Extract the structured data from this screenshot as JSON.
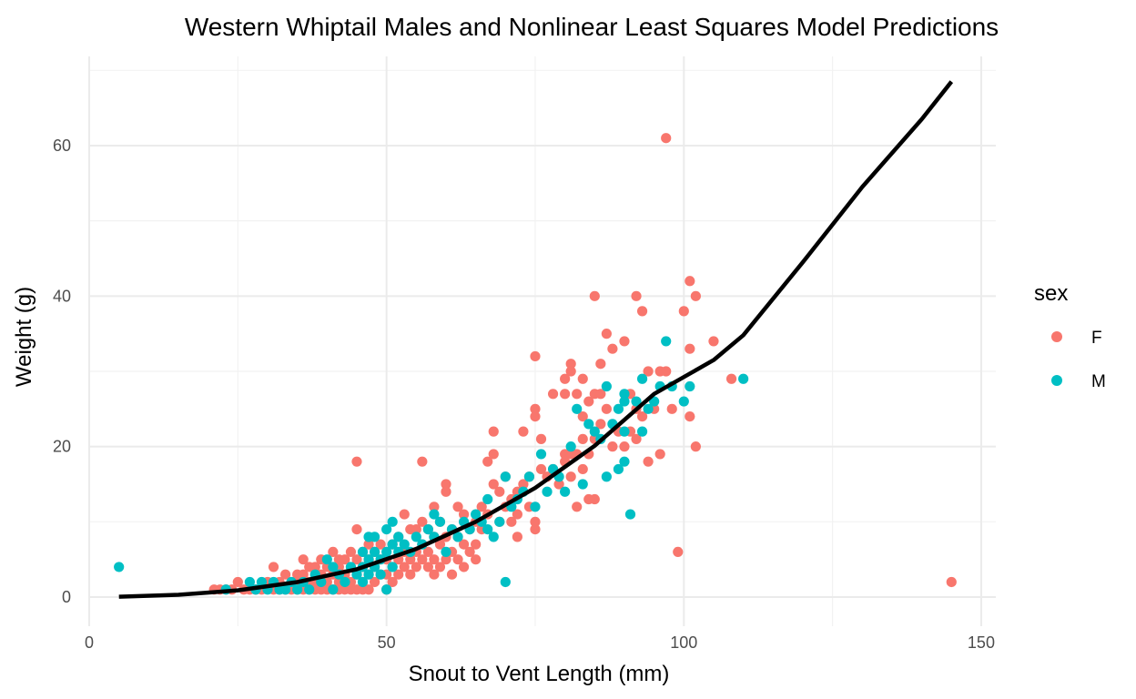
{
  "chart_data": {
    "type": "scatter",
    "title": "Western Whiptail Males and Nonlinear Least Squares Model Predictions",
    "xlabel": "Snout to Vent Length (mm)",
    "ylabel": "Weight (g)",
    "xlim": [
      0,
      150
    ],
    "ylim": [
      0,
      70
    ],
    "x_ticks": [
      0,
      50,
      100,
      150
    ],
    "x_tick_labels": [
      "0",
      "50",
      "100",
      "150"
    ],
    "y_ticks": [
      0,
      20,
      40,
      60
    ],
    "y_tick_labels": [
      "0",
      "20",
      "40",
      "60"
    ],
    "grid": true,
    "legend": {
      "title": "sex",
      "position": "right",
      "entries": [
        {
          "label": "F",
          "color": "#F8766D"
        },
        {
          "label": "M",
          "color": "#00BFC4"
        }
      ]
    },
    "series": [
      {
        "name": "F",
        "color": "#F8766D",
        "points": [
          [
            21,
            1
          ],
          [
            22,
            1
          ],
          [
            23,
            1
          ],
          [
            24,
            1
          ],
          [
            25,
            2
          ],
          [
            26,
            1
          ],
          [
            27,
            1
          ],
          [
            28,
            1
          ],
          [
            29,
            1
          ],
          [
            30,
            2
          ],
          [
            31,
            4
          ],
          [
            31,
            1
          ],
          [
            32,
            2
          ],
          [
            32,
            1
          ],
          [
            33,
            3
          ],
          [
            33,
            1
          ],
          [
            34,
            2
          ],
          [
            34,
            1
          ],
          [
            35,
            3
          ],
          [
            35,
            2
          ],
          [
            35,
            1
          ],
          [
            36,
            5
          ],
          [
            36,
            3
          ],
          [
            36,
            1
          ],
          [
            37,
            4
          ],
          [
            37,
            2
          ],
          [
            37,
            1
          ],
          [
            38,
            4
          ],
          [
            38,
            3
          ],
          [
            38,
            2
          ],
          [
            38,
            1
          ],
          [
            39,
            5
          ],
          [
            39,
            3
          ],
          [
            39,
            1
          ],
          [
            40,
            4
          ],
          [
            40,
            2
          ],
          [
            40,
            1
          ],
          [
            41,
            6
          ],
          [
            41,
            3
          ],
          [
            41,
            1
          ],
          [
            42,
            5
          ],
          [
            42,
            4
          ],
          [
            42,
            2
          ],
          [
            42,
            1
          ],
          [
            43,
            5
          ],
          [
            43,
            3
          ],
          [
            43,
            1
          ],
          [
            44,
            6
          ],
          [
            44,
            4
          ],
          [
            44,
            2
          ],
          [
            44,
            1
          ],
          [
            45,
            18
          ],
          [
            45,
            9
          ],
          [
            45,
            5
          ],
          [
            45,
            3
          ],
          [
            45,
            1
          ],
          [
            46,
            6
          ],
          [
            46,
            4
          ],
          [
            46,
            2
          ],
          [
            46,
            1
          ],
          [
            47,
            7
          ],
          [
            47,
            5
          ],
          [
            47,
            3
          ],
          [
            47,
            1
          ],
          [
            48,
            6
          ],
          [
            48,
            4
          ],
          [
            48,
            2
          ],
          [
            49,
            7
          ],
          [
            49,
            5
          ],
          [
            49,
            3
          ],
          [
            50,
            5
          ],
          [
            50,
            3
          ],
          [
            50,
            1
          ],
          [
            51,
            7
          ],
          [
            51,
            4
          ],
          [
            51,
            2
          ],
          [
            52,
            8
          ],
          [
            52,
            5
          ],
          [
            52,
            3
          ],
          [
            53,
            11
          ],
          [
            53,
            6
          ],
          [
            53,
            4
          ],
          [
            54,
            9
          ],
          [
            54,
            5
          ],
          [
            54,
            3
          ],
          [
            55,
            9
          ],
          [
            55,
            6
          ],
          [
            55,
            4
          ],
          [
            56,
            18
          ],
          [
            56,
            10
          ],
          [
            56,
            7
          ],
          [
            56,
            5
          ],
          [
            57,
            9
          ],
          [
            57,
            6
          ],
          [
            57,
            4
          ],
          [
            58,
            12
          ],
          [
            58,
            8
          ],
          [
            58,
            5
          ],
          [
            58,
            3
          ],
          [
            59,
            10
          ],
          [
            59,
            7
          ],
          [
            59,
            4
          ],
          [
            60,
            15
          ],
          [
            60,
            14
          ],
          [
            60,
            8
          ],
          [
            60,
            5
          ],
          [
            61,
            9
          ],
          [
            61,
            6
          ],
          [
            61,
            3
          ],
          [
            62,
            12
          ],
          [
            62,
            8
          ],
          [
            62,
            5
          ],
          [
            63,
            11
          ],
          [
            63,
            7
          ],
          [
            63,
            4
          ],
          [
            64,
            9
          ],
          [
            64,
            6
          ],
          [
            65,
            10
          ],
          [
            65,
            7
          ],
          [
            65,
            5
          ],
          [
            66,
            12
          ],
          [
            66,
            9
          ],
          [
            67,
            18
          ],
          [
            67,
            11
          ],
          [
            68,
            22
          ],
          [
            68,
            15
          ],
          [
            68,
            19
          ],
          [
            69,
            14
          ],
          [
            69,
            10
          ],
          [
            70,
            16
          ],
          [
            70,
            12
          ],
          [
            71,
            13
          ],
          [
            71,
            10
          ],
          [
            72,
            14
          ],
          [
            72,
            11
          ],
          [
            72,
            8
          ],
          [
            73,
            22
          ],
          [
            73,
            15
          ],
          [
            74,
            16
          ],
          [
            74,
            12
          ],
          [
            75,
            32
          ],
          [
            75,
            25
          ],
          [
            75,
            24
          ],
          [
            75,
            10
          ],
          [
            75,
            9
          ],
          [
            76,
            21
          ],
          [
            76,
            17
          ],
          [
            77,
            16
          ],
          [
            78,
            27
          ],
          [
            78,
            17
          ],
          [
            79,
            15
          ],
          [
            80,
            29
          ],
          [
            80,
            27
          ],
          [
            80,
            19
          ],
          [
            80,
            18
          ],
          [
            81,
            31
          ],
          [
            81,
            30
          ],
          [
            81,
            19
          ],
          [
            81,
            16
          ],
          [
            82,
            27
          ],
          [
            82,
            19
          ],
          [
            82,
            12
          ],
          [
            83,
            29
          ],
          [
            83,
            24
          ],
          [
            83,
            21
          ],
          [
            83,
            17
          ],
          [
            84,
            26
          ],
          [
            84,
            19
          ],
          [
            84,
            13
          ],
          [
            85,
            40
          ],
          [
            85,
            27
          ],
          [
            85,
            21
          ],
          [
            85,
            13
          ],
          [
            86,
            31
          ],
          [
            86,
            27
          ],
          [
            86,
            23
          ],
          [
            87,
            35
          ],
          [
            87,
            25
          ],
          [
            88,
            33
          ],
          [
            88,
            20
          ],
          [
            89,
            22
          ],
          [
            90,
            34
          ],
          [
            90,
            20
          ],
          [
            91,
            27
          ],
          [
            91,
            22
          ],
          [
            92,
            40
          ],
          [
            92,
            25
          ],
          [
            92,
            21
          ],
          [
            93,
            38
          ],
          [
            93,
            24
          ],
          [
            94,
            30
          ],
          [
            94,
            18
          ],
          [
            95,
            25
          ],
          [
            96,
            30
          ],
          [
            96,
            19
          ],
          [
            97,
            61
          ],
          [
            97,
            30
          ],
          [
            98,
            25
          ],
          [
            99,
            6
          ],
          [
            100,
            38
          ],
          [
            101,
            42
          ],
          [
            101,
            33
          ],
          [
            101,
            24
          ],
          [
            102,
            40
          ],
          [
            102,
            20
          ],
          [
            105,
            34
          ],
          [
            108,
            29
          ],
          [
            145,
            2
          ]
        ]
      },
      {
        "name": "M",
        "color": "#00BFC4",
        "points": [
          [
            5,
            4
          ],
          [
            23,
            1
          ],
          [
            27,
            2
          ],
          [
            28,
            1
          ],
          [
            29,
            2
          ],
          [
            30,
            1
          ],
          [
            31,
            2
          ],
          [
            32,
            1
          ],
          [
            33,
            1
          ],
          [
            34,
            2
          ],
          [
            35,
            1
          ],
          [
            36,
            2
          ],
          [
            37,
            1
          ],
          [
            38,
            3
          ],
          [
            39,
            2
          ],
          [
            40,
            5
          ],
          [
            41,
            4
          ],
          [
            41,
            1
          ],
          [
            42,
            3
          ],
          [
            43,
            2
          ],
          [
            44,
            4
          ],
          [
            45,
            3
          ],
          [
            46,
            6
          ],
          [
            46,
            4
          ],
          [
            46,
            2
          ],
          [
            47,
            8
          ],
          [
            47,
            5
          ],
          [
            47,
            3
          ],
          [
            48,
            8
          ],
          [
            48,
            6
          ],
          [
            48,
            4
          ],
          [
            49,
            5
          ],
          [
            49,
            3
          ],
          [
            50,
            9
          ],
          [
            50,
            6
          ],
          [
            50,
            1
          ],
          [
            51,
            10
          ],
          [
            51,
            7
          ],
          [
            51,
            4
          ],
          [
            52,
            8
          ],
          [
            52,
            6
          ],
          [
            53,
            7
          ],
          [
            54,
            6
          ],
          [
            55,
            8
          ],
          [
            56,
            7
          ],
          [
            57,
            9
          ],
          [
            58,
            11
          ],
          [
            58,
            8
          ],
          [
            59,
            10
          ],
          [
            60,
            6
          ],
          [
            61,
            9
          ],
          [
            62,
            8
          ],
          [
            63,
            10
          ],
          [
            64,
            9
          ],
          [
            65,
            11
          ],
          [
            66,
            10
          ],
          [
            67,
            13
          ],
          [
            67,
            9
          ],
          [
            68,
            8
          ],
          [
            69,
            10
          ],
          [
            70,
            16
          ],
          [
            70,
            2
          ],
          [
            71,
            12
          ],
          [
            72,
            13
          ],
          [
            73,
            14
          ],
          [
            74,
            16
          ],
          [
            75,
            12
          ],
          [
            76,
            19
          ],
          [
            77,
            14
          ],
          [
            78,
            17
          ],
          [
            79,
            16
          ],
          [
            80,
            14
          ],
          [
            81,
            20
          ],
          [
            82,
            25
          ],
          [
            83,
            15
          ],
          [
            84,
            23
          ],
          [
            85,
            22
          ],
          [
            86,
            21
          ],
          [
            87,
            28
          ],
          [
            87,
            16
          ],
          [
            88,
            23
          ],
          [
            89,
            17
          ],
          [
            89,
            25
          ],
          [
            90,
            26
          ],
          [
            90,
            27
          ],
          [
            90,
            18
          ],
          [
            90,
            22
          ],
          [
            91,
            11
          ],
          [
            92,
            26
          ],
          [
            93,
            29
          ],
          [
            93,
            22
          ],
          [
            94,
            25
          ],
          [
            95,
            26
          ],
          [
            96,
            28
          ],
          [
            97,
            34
          ],
          [
            98,
            28
          ],
          [
            100,
            26
          ],
          [
            101,
            28
          ],
          [
            110,
            29
          ]
        ]
      },
      {
        "name": "",
        "type": "line",
        "color": "#000000",
        "points": [
          [
            5,
            0.05
          ],
          [
            15,
            0.3
          ],
          [
            25,
            0.9
          ],
          [
            35,
            2.0
          ],
          [
            45,
            3.7
          ],
          [
            55,
            6.4
          ],
          [
            65,
            10.0
          ],
          [
            75,
            14.5
          ],
          [
            85,
            20.1
          ],
          [
            95,
            27.0
          ],
          [
            105,
            31.5
          ],
          [
            110,
            34.8
          ],
          [
            120,
            44.5
          ],
          [
            130,
            54.5
          ],
          [
            140,
            63.5
          ],
          [
            145,
            68.5
          ]
        ]
      }
    ]
  }
}
